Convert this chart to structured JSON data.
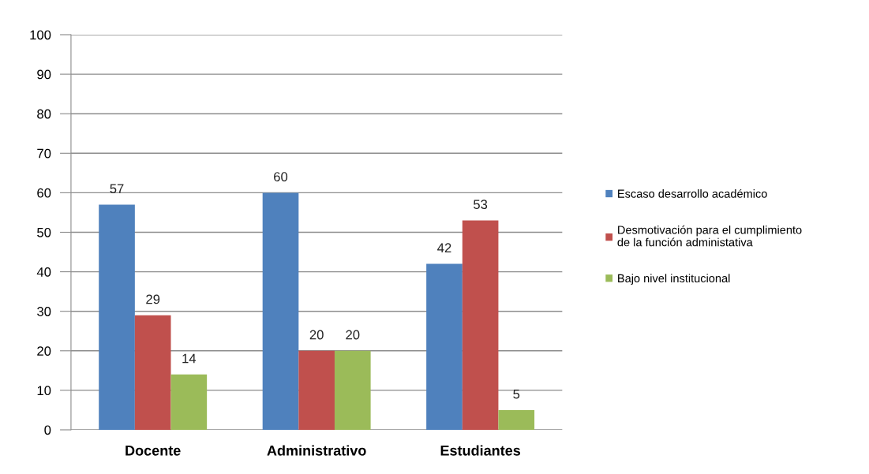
{
  "chart_data": {
    "type": "bar",
    "categories": [
      "Docente",
      "Administrativo",
      "Estudiantes"
    ],
    "series": [
      {
        "name": "Escaso desarrollo académico",
        "color": "#4f81bd",
        "values": [
          57,
          60,
          42
        ]
      },
      {
        "name": "Desmotivación para el cumplimiento de la función administativa",
        "color": "#c0504d",
        "values": [
          29,
          20,
          53
        ]
      },
      {
        "name": "Bajo nivel institucional",
        "color": "#9bbb59",
        "values": [
          14,
          20,
          5
        ]
      }
    ],
    "ylim": [
      0,
      100
    ],
    "yticks": [
      0,
      10,
      20,
      30,
      40,
      50,
      60,
      70,
      80,
      90,
      100
    ],
    "grid": "y",
    "legend": "right",
    "data_labels": true
  }
}
